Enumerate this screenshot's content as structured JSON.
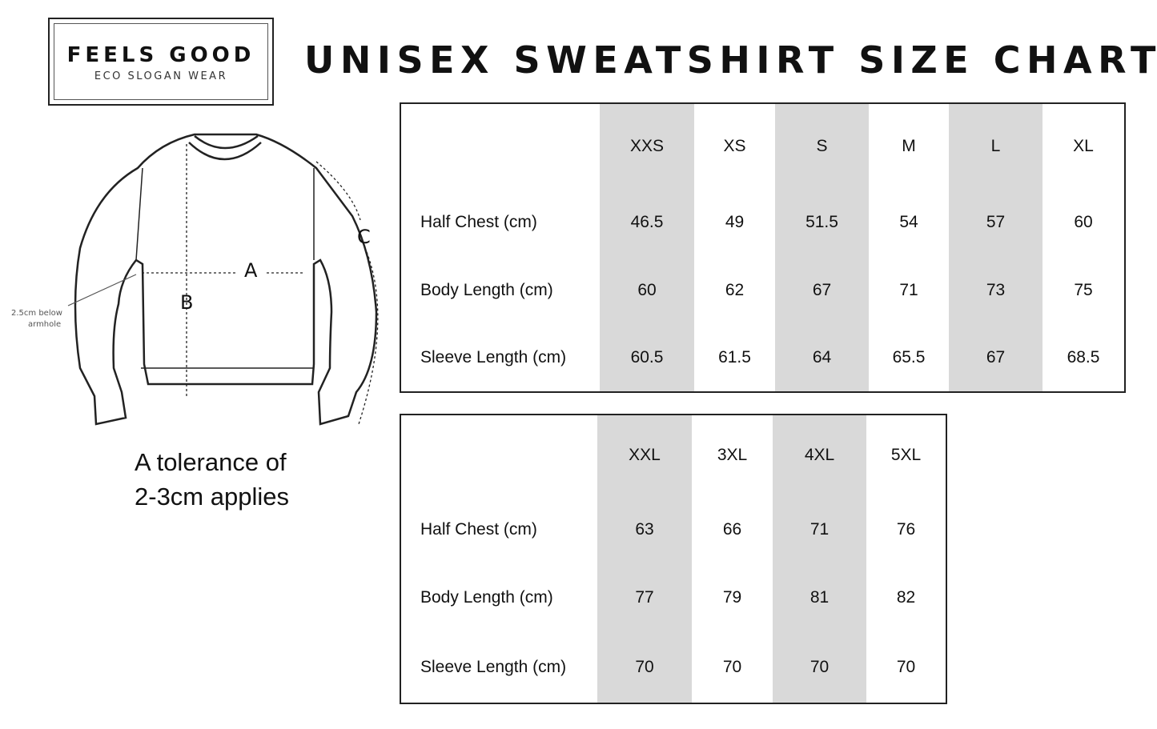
{
  "logo": {
    "name": "FEELS GOOD",
    "tagline": "ECO SLOGAN WEAR"
  },
  "title": "UNISEX SWEATSHIRT SIZE CHART",
  "diagram": {
    "label_a": "A",
    "label_b": "B",
    "label_c": "C",
    "note_line1": "2.5cm below",
    "note_line2": "armhole"
  },
  "tolerance": {
    "line1": "A tolerance of",
    "line2": "2-3cm applies"
  },
  "colors": {
    "shaded_column": "#d9d9d9",
    "border": "#222222"
  },
  "table1": {
    "sizes": [
      "XXS",
      "XS",
      "S",
      "M",
      "L",
      "XL"
    ],
    "rows": [
      {
        "label": "Half Chest (cm)",
        "values": [
          "46.5",
          "49",
          "51.5",
          "54",
          "57",
          "60"
        ]
      },
      {
        "label": "Body Length (cm)",
        "values": [
          "60",
          "62",
          "67",
          "71",
          "73",
          "75"
        ]
      },
      {
        "label": "Sleeve Length (cm)",
        "values": [
          "60.5",
          "61.5",
          "64",
          "65.5",
          "67",
          "68.5"
        ]
      }
    ]
  },
  "table2": {
    "sizes": [
      "XXL",
      "3XL",
      "4XL",
      "5XL"
    ],
    "rows": [
      {
        "label": "Half Chest (cm)",
        "values": [
          "63",
          "66",
          "71",
          "76"
        ]
      },
      {
        "label": "Body Length (cm)",
        "values": [
          "77",
          "79",
          "81",
          "82"
        ]
      },
      {
        "label": "Sleeve Length (cm)",
        "values": [
          "70",
          "70",
          "70",
          "70"
        ]
      }
    ]
  }
}
